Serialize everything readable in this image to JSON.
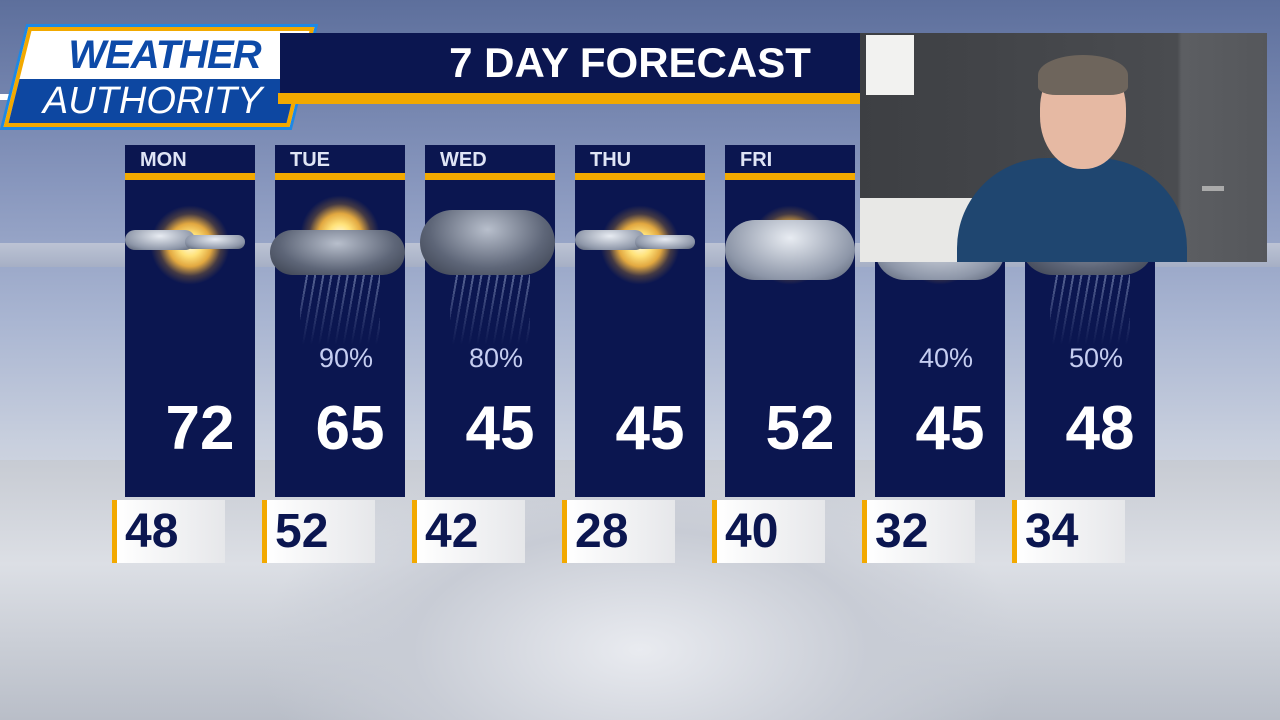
{
  "logo": {
    "line1": "WEATHER",
    "line2": "AUTHORITY"
  },
  "title": "7 DAY FORECAST",
  "colors": {
    "navy": "#0b1650",
    "accent": "#f2a900",
    "logo_blue": "#0d47a1"
  },
  "days": [
    {
      "day": "MON",
      "icon": "sun-with-clouds-icon",
      "precip": "",
      "high": "72",
      "low": "48"
    },
    {
      "day": "TUE",
      "icon": "rain-clouds-sun-icon",
      "precip": "90%",
      "high": "65",
      "low": "52"
    },
    {
      "day": "WED",
      "icon": "rain-snow-cloud-icon",
      "precip": "80%",
      "high": "45",
      "low": "42"
    },
    {
      "day": "THU",
      "icon": "sun-with-clouds-icon",
      "precip": "",
      "high": "45",
      "low": "28"
    },
    {
      "day": "FRI",
      "icon": "partly-cloudy-icon",
      "precip": "",
      "high": "52",
      "low": "40"
    },
    {
      "day": "",
      "icon": "partly-cloudy-icon",
      "precip": "40%",
      "high": "45",
      "low": "32"
    },
    {
      "day": "",
      "icon": "rain-snow-cloud-icon",
      "precip": "50%",
      "high": "48",
      "low": "34"
    }
  ]
}
